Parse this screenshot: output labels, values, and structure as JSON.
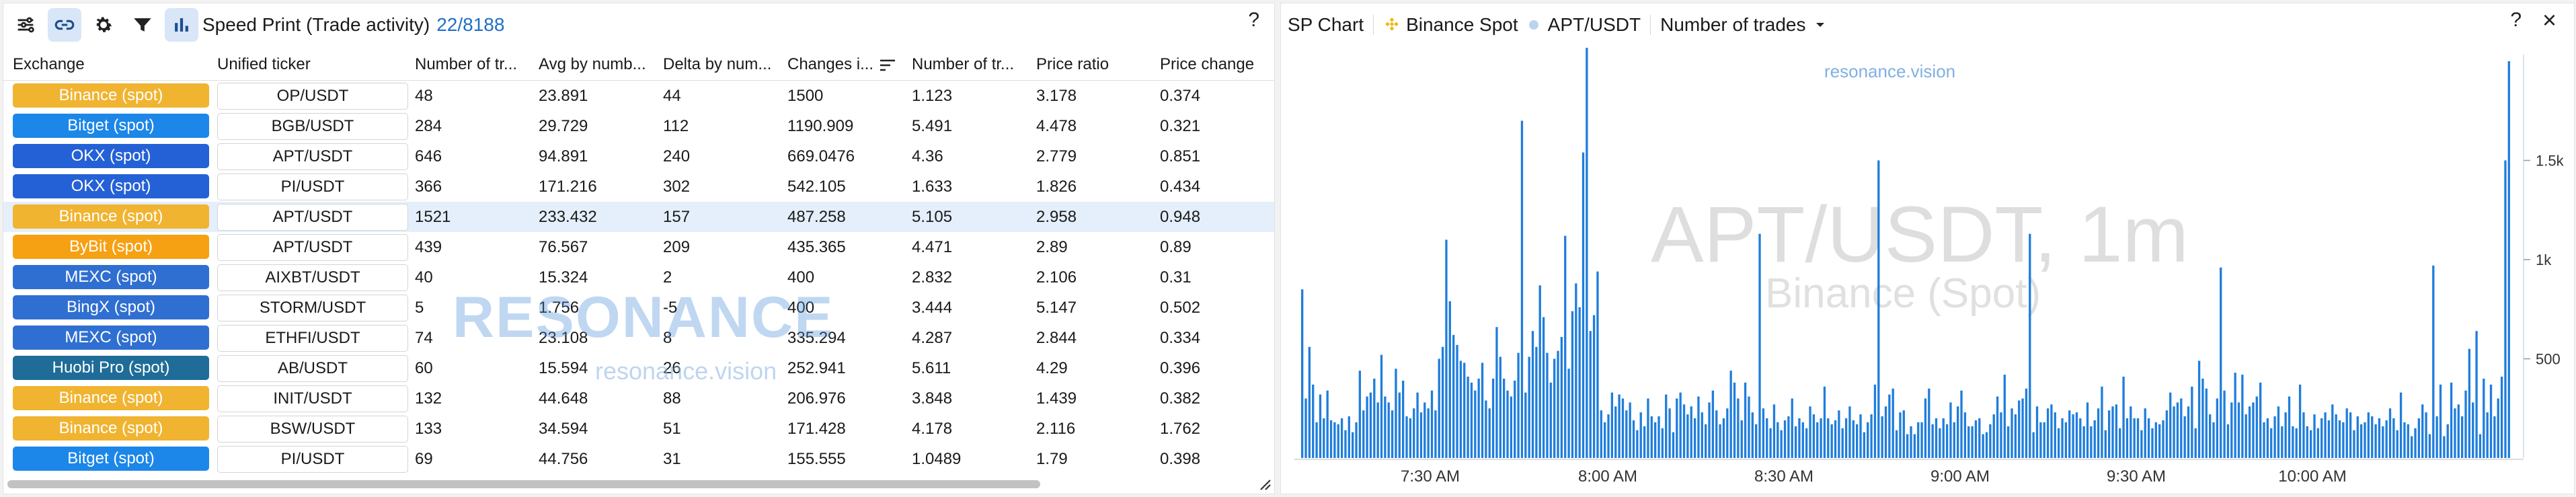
{
  "left": {
    "title": "Speed Print (Trade activity)",
    "count": "22/8188",
    "help": "?",
    "toolbar_icons": [
      "sliders-icon",
      "link-icon",
      "gear-icon",
      "filter-icon",
      "bar-chart-icon"
    ],
    "watermark": {
      "logo": "RESONANCE",
      "sub": "resonance.vision"
    },
    "columns": [
      "Exchange",
      "Unified ticker",
      "Number of tr...",
      "Avg by numb...",
      "Delta by num...",
      "Changes i...",
      "Number of tr...",
      "Price ratio",
      "Price change"
    ],
    "colors": {
      "binance": "#f0b431",
      "bitget": "#1c87e8",
      "okx": "#2561d6",
      "bybit": "#f6a113",
      "mexc": "#2f6fd1",
      "bingx": "#2f6fd1",
      "huobi": "#1f6c98",
      "selected_row": "#e4effb",
      "accent": "#1f6fc6"
    },
    "rows": [
      {
        "exchange": "Binance (spot)",
        "color": "binance",
        "ticker": "OP/USDT",
        "c1": "48",
        "c2": "23.891",
        "c3": "44",
        "c4": "1500",
        "c5": "1.123",
        "c6": "3.178",
        "c7": "0.374"
      },
      {
        "exchange": "Bitget (spot)",
        "color": "bitget",
        "ticker": "BGB/USDT",
        "c1": "284",
        "c2": "29.729",
        "c3": "112",
        "c4": "1190.909",
        "c5": "5.491",
        "c6": "4.478",
        "c7": "0.321"
      },
      {
        "exchange": "OKX (spot)",
        "color": "okx",
        "ticker": "APT/USDT",
        "c1": "646",
        "c2": "94.891",
        "c3": "240",
        "c4": "669.0476",
        "c5": "4.36",
        "c6": "2.779",
        "c7": "0.851"
      },
      {
        "exchange": "OKX (spot)",
        "color": "okx",
        "ticker": "PI/USDT",
        "c1": "366",
        "c2": "171.216",
        "c3": "302",
        "c4": "542.105",
        "c5": "1.633",
        "c6": "1.826",
        "c7": "0.434"
      },
      {
        "exchange": "Binance (spot)",
        "color": "binance",
        "ticker": "APT/USDT",
        "c1": "1521",
        "c2": "233.432",
        "c3": "157",
        "c4": "487.258",
        "c5": "5.105",
        "c6": "2.958",
        "c7": "0.948",
        "selected": true
      },
      {
        "exchange": "ByBit (spot)",
        "color": "bybit",
        "ticker": "APT/USDT",
        "c1": "439",
        "c2": "76.567",
        "c3": "209",
        "c4": "435.365",
        "c5": "4.471",
        "c6": "2.89",
        "c7": "0.89"
      },
      {
        "exchange": "MEXC (spot)",
        "color": "mexc",
        "ticker": "AIXBT/USDT",
        "c1": "40",
        "c2": "15.324",
        "c3": "2",
        "c4": "400",
        "c5": "2.832",
        "c6": "2.106",
        "c7": "0.31"
      },
      {
        "exchange": "BingX (spot)",
        "color": "bingx",
        "ticker": "STORM/USDT",
        "c1": "5",
        "c2": "1.756",
        "c3": "-5",
        "c4": "400",
        "c5": "3.444",
        "c6": "5.147",
        "c7": "0.502"
      },
      {
        "exchange": "MEXC (spot)",
        "color": "mexc",
        "ticker": "ETHFI/USDT",
        "c1": "74",
        "c2": "23.108",
        "c3": "8",
        "c4": "335.294",
        "c5": "4.287",
        "c6": "2.844",
        "c7": "0.334"
      },
      {
        "exchange": "Huobi Pro (spot)",
        "color": "huobi",
        "ticker": "AB/USDT",
        "c1": "60",
        "c2": "15.594",
        "c3": "26",
        "c4": "252.941",
        "c5": "5.611",
        "c6": "4.29",
        "c7": "0.396"
      },
      {
        "exchange": "Binance (spot)",
        "color": "binance",
        "ticker": "INIT/USDT",
        "c1": "132",
        "c2": "44.648",
        "c3": "88",
        "c4": "206.976",
        "c5": "3.848",
        "c6": "1.439",
        "c7": "0.382"
      },
      {
        "exchange": "Binance (spot)",
        "color": "binance",
        "ticker": "BSW/USDT",
        "c1": "133",
        "c2": "34.594",
        "c3": "51",
        "c4": "171.428",
        "c5": "4.178",
        "c6": "2.116",
        "c7": "1.762"
      },
      {
        "exchange": "Bitget (spot)",
        "color": "bitget",
        "ticker": "PI/USDT",
        "c1": "69",
        "c2": "44.756",
        "c3": "31",
        "c4": "155.555",
        "c5": "1.0489",
        "c6": "1.79",
        "c7": "0.398"
      }
    ]
  },
  "right": {
    "title": "SP Chart",
    "exchange": "Binance Spot",
    "ticker": "APT/USDT",
    "metric": "Number of trades",
    "help": "?",
    "close": "×",
    "site_label": "resonance.vision",
    "watermark_main": "APT/USDT, 1m",
    "watermark_sub": "Binance (Spot)"
  },
  "chart_data": {
    "type": "bar",
    "x_tick_labels": [
      "7:30 AM",
      "8:00 AM",
      "8:30 AM",
      "9:00 AM",
      "9:30 AM",
      "10:00 AM"
    ],
    "y_tick_labels": [
      "500",
      "1k",
      "1.5k"
    ],
    "ylim": [
      0,
      2000
    ],
    "bar_color": "#1f7ddc",
    "grid": false,
    "values": [
      850,
      300,
      560,
      370,
      180,
      320,
      200,
      340,
      190,
      180,
      170,
      200,
      140,
      210,
      130,
      180,
      440,
      240,
      310,
      330,
      400,
      280,
      520,
      310,
      280,
      240,
      450,
      330,
      390,
      210,
      200,
      250,
      330,
      230,
      280,
      250,
      340,
      240,
      500,
      560,
      1100,
      790,
      620,
      570,
      490,
      480,
      410,
      380,
      340,
      400,
      480,
      290,
      250,
      400,
      660,
      510,
      400,
      340,
      310,
      390,
      530,
      1700,
      330,
      510,
      640,
      560,
      870,
      710,
      530,
      380,
      500,
      540,
      610,
      1120,
      450,
      740,
      880,
      760,
      1540,
      2100,
      640,
      720,
      940,
      240,
      180,
      220,
      330,
      260,
      320,
      300,
      240,
      280,
      190,
      140,
      230,
      160,
      300,
      210,
      180,
      210,
      150,
      320,
      250,
      130,
      300,
      330,
      270,
      220,
      260,
      200,
      310,
      230,
      170,
      280,
      340,
      240,
      170,
      200,
      250,
      440,
      380,
      300,
      190,
      380,
      310,
      230,
      170,
      1130,
      250,
      200,
      150,
      270,
      180,
      140,
      190,
      210,
      300,
      160,
      200,
      180,
      150,
      260,
      220,
      180,
      200,
      360,
      200,
      170,
      190,
      240,
      150,
      200,
      260,
      190,
      170,
      220,
      130,
      180,
      220,
      370,
      1500,
      210,
      260,
      320,
      350,
      140,
      230,
      240,
      120,
      160,
      120,
      180,
      180,
      300,
      350,
      170,
      200,
      150,
      200,
      170,
      280,
      180,
      260,
      340,
      230,
      160,
      160,
      190,
      200,
      120,
      130,
      170,
      220,
      310,
      230,
      420,
      160,
      250,
      220,
      290,
      300,
      350,
      1130,
      130,
      260,
      180,
      180,
      250,
      270,
      230,
      150,
      200,
      180,
      240,
      220,
      230,
      200,
      160,
      280,
      160,
      190,
      250,
      360,
      140,
      240,
      260,
      270,
      150,
      410,
      200,
      260,
      200,
      200,
      140,
      250,
      200,
      150,
      180,
      170,
      190,
      240,
      330,
      260,
      280,
      300,
      210,
      260,
      360,
      150,
      490,
      400,
      350,
      220,
      180,
      300,
      960,
      340,
      170,
      280,
      430,
      280,
      420,
      220,
      260,
      280,
      310,
      380,
      180,
      200,
      150,
      210,
      260,
      160,
      230,
      310,
      160,
      150,
      370,
      230,
      160,
      140,
      220,
      150,
      200,
      230,
      190,
      270,
      220,
      190,
      180,
      250,
      230,
      140,
      210,
      170,
      180,
      230,
      210,
      170,
      200,
      160,
      190,
      250,
      200,
      140,
      330,
      180,
      170,
      110,
      150,
      200,
      270,
      230,
      120,
      970,
      210,
      370,
      110,
      170,
      380,
      250,
      270,
      210,
      340,
      550,
      280,
      640,
      120,
      400,
      230,
      370,
      210,
      300,
      410,
      1500,
      2000
    ]
  }
}
